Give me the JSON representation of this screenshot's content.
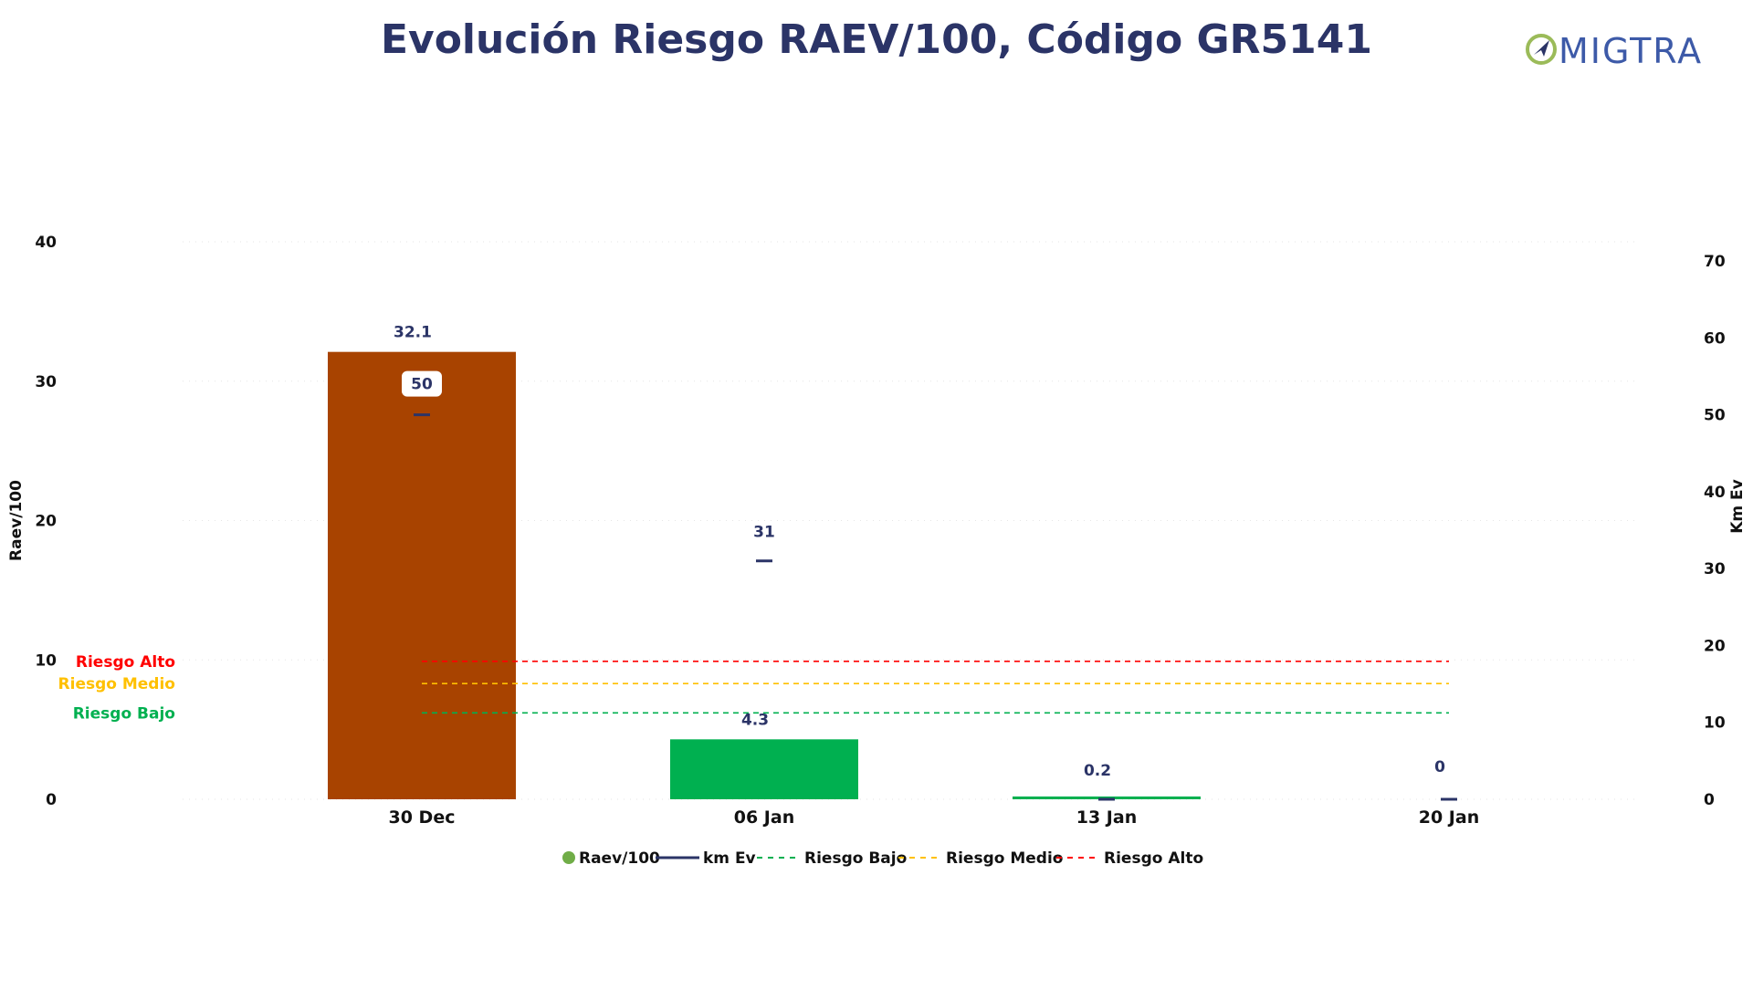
{
  "chart_data": {
    "type": "bar",
    "title": "Evolución Riesgo RAEV/100, Código GR5141",
    "categories": [
      "30 Dec",
      "06 Jan",
      "13 Jan",
      "20 Jan"
    ],
    "series": [
      {
        "name": "Raev/100",
        "type": "bar",
        "axis": "left",
        "values": [
          32.1,
          4.3,
          0.2,
          0
        ],
        "colors": [
          "#a84300",
          "#00b050",
          "#00b050",
          "#00b050"
        ],
        "labels": [
          "32.1",
          "4.3",
          "0.2",
          "0"
        ]
      },
      {
        "name": "km Ev",
        "type": "marker",
        "axis": "right",
        "values": [
          50,
          31,
          0,
          0
        ],
        "color": "#2b3467",
        "labels": [
          "50",
          "31",
          "",
          ""
        ]
      }
    ],
    "thresholds": [
      {
        "name": "Riesgo Bajo",
        "value": 6.2,
        "color": "#00b050"
      },
      {
        "name": "Riesgo Medio",
        "value": 8.3,
        "color": "#ffc000"
      },
      {
        "name": "Riesgo Alto",
        "value": 9.9,
        "color": "#ff0000"
      }
    ],
    "ylabel": "Raev/100",
    "ylim": [
      0,
      40
    ],
    "yticks": [
      "0",
      "10",
      "20",
      "30",
      "40"
    ],
    "y2label": "Km Ev",
    "y2lim": [
      0,
      72.5
    ],
    "y2ticks": [
      "0",
      "10",
      "20",
      "30",
      "40",
      "50",
      "60",
      "70"
    ],
    "grid": true,
    "legend_position": "bottom"
  },
  "legend": [
    "Raev/100",
    "km Ev",
    "Riesgo Bajo",
    "Riesgo Medio",
    "Riesgo Alto"
  ],
  "logo_text": "MIGTRA",
  "colors": {
    "title": "#2b3467",
    "logo_mark": "#9bbb59"
  }
}
